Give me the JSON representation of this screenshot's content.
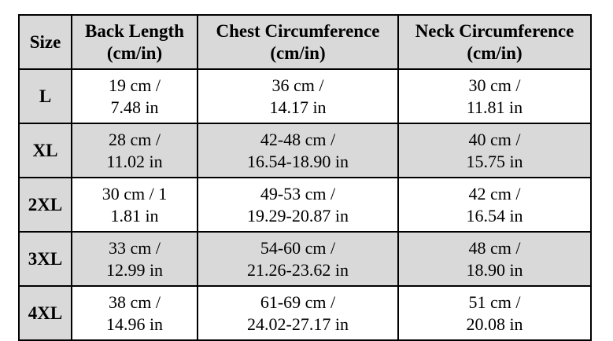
{
  "table": {
    "columns": [
      {
        "title": "Size"
      },
      {
        "title": "Back Length",
        "subtitle": "(cm/in)"
      },
      {
        "title": "Chest Circumference",
        "subtitle": "(cm/in)"
      },
      {
        "title": "Neck Circumference",
        "subtitle": "(cm/in)"
      }
    ],
    "rows": [
      {
        "size": "L",
        "back_line1": "19 cm /",
        "back_line2": "7.48 in",
        "chest_line1": "36 cm /",
        "chest_line2": "14.17 in",
        "neck_line1": "30 cm /",
        "neck_line2": "11.81 in"
      },
      {
        "size": "XL",
        "back_line1": "28 cm /",
        "back_line2": "11.02 in",
        "chest_line1": "42-48 cm /",
        "chest_line2": "16.54-18.90 in",
        "neck_line1": "40 cm /",
        "neck_line2": "15.75 in"
      },
      {
        "size": "2XL",
        "back_line1": "30 cm / 1",
        "back_line2": "1.81 in",
        "chest_line1": "49-53 cm /",
        "chest_line2": "19.29-20.87 in",
        "neck_line1": "42 cm /",
        "neck_line2": "16.54 in"
      },
      {
        "size": "3XL",
        "back_line1": "33 cm /",
        "back_line2": "12.99 in",
        "chest_line1": "54-60 cm /",
        "chest_line2": "21.26-23.62 in",
        "neck_line1": "48 cm /",
        "neck_line2": "18.90 in"
      },
      {
        "size": "4XL",
        "back_line1": "38 cm /",
        "back_line2": "14.96 in",
        "chest_line1": "61-69 cm /",
        "chest_line2": "24.02-27.17 in",
        "neck_line1": "51 cm /",
        "neck_line2": "20.08 in"
      }
    ],
    "colors": {
      "shaded_bg": "#d9d9d9",
      "unshaded_bg": "#ffffff",
      "border": "#000000",
      "text": "#000000"
    }
  }
}
